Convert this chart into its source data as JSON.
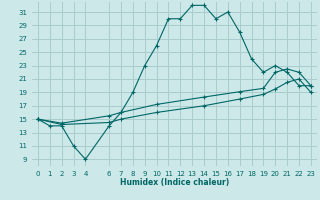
{
  "title": "",
  "xlabel": "Humidex (Indice chaleur)",
  "bg_color": "#cce8e8",
  "grid_color": "#aacccc",
  "line_color": "#006666",
  "xlim": [
    -0.5,
    23.5
  ],
  "ylim": [
    8,
    32.5
  ],
  "yticks": [
    9,
    11,
    13,
    15,
    17,
    19,
    21,
    23,
    25,
    27,
    29,
    31
  ],
  "xticks": [
    0,
    1,
    2,
    3,
    4,
    6,
    7,
    8,
    9,
    10,
    11,
    12,
    13,
    14,
    15,
    16,
    17,
    18,
    19,
    20,
    21,
    22,
    23
  ],
  "line1_x": [
    0,
    1,
    2,
    3,
    4,
    6,
    7,
    8,
    9,
    10,
    11,
    12,
    13,
    14,
    15,
    16,
    17,
    18,
    19,
    20,
    21,
    22,
    23
  ],
  "line1_y": [
    15,
    14,
    14,
    11,
    9,
    14,
    16,
    19,
    23,
    26,
    30,
    30,
    32,
    32,
    30,
    31,
    28,
    24,
    22,
    23,
    22,
    20,
    20
  ],
  "line2_x": [
    0,
    23
  ],
  "line2_y": [
    15,
    20
  ],
  "line3_x": [
    0,
    23
  ],
  "line3_y": [
    15,
    19
  ],
  "line2_markers_x": [
    0,
    2,
    6,
    7,
    10,
    14,
    17,
    19,
    20,
    21,
    22,
    23
  ],
  "line2_markers_y": [
    15,
    14.4,
    15.5,
    16,
    17.2,
    18.3,
    19.1,
    19.6,
    22,
    22.5,
    22,
    20
  ],
  "line3_markers_x": [
    0,
    2,
    6,
    7,
    10,
    14,
    17,
    19,
    20,
    21,
    22,
    23
  ],
  "line3_markers_y": [
    15,
    14.2,
    14.5,
    15,
    16,
    17,
    18,
    18.7,
    19.5,
    20.5,
    21,
    19
  ]
}
